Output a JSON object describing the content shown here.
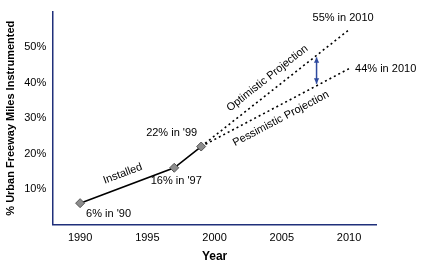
{
  "chart_data": {
    "type": "line",
    "x_label": "Year",
    "y_label": "% Urban Freeway Miles Instrumented",
    "xlim": [
      1988,
      2012
    ],
    "xticks": [
      1990,
      1995,
      2000,
      2005,
      2010
    ],
    "ylim": [
      0,
      60
    ],
    "yticks": [
      {
        "value": 10,
        "label": "10%"
      },
      {
        "value": 20,
        "label": "20%"
      },
      {
        "value": 30,
        "label": "30%"
      },
      {
        "value": 40,
        "label": "40%"
      },
      {
        "value": 50,
        "label": "50%"
      }
    ],
    "grid": false,
    "series": [
      {
        "name": "Installed",
        "color": "#000000",
        "line_style": "solid",
        "marker": "diamond",
        "x": [
          1990,
          1997,
          1999
        ],
        "values": [
          6,
          16,
          22
        ],
        "value_labels": [
          "6% in '90",
          "16% in '97",
          "22% in '99"
        ]
      },
      {
        "name": "Optimistic Projection",
        "color": "#000000",
        "line_style": "dotted",
        "marker": "none",
        "x": [
          1999,
          2010
        ],
        "values": [
          22,
          55
        ],
        "value_labels": [
          null,
          "55% in 2010"
        ]
      },
      {
        "name": "Pessimistic Projection",
        "color": "#000000",
        "line_style": "dotted",
        "marker": "none",
        "x": [
          1999,
          2010
        ],
        "values": [
          22,
          44
        ],
        "value_labels": [
          null,
          "44% in 2010"
        ]
      }
    ]
  }
}
